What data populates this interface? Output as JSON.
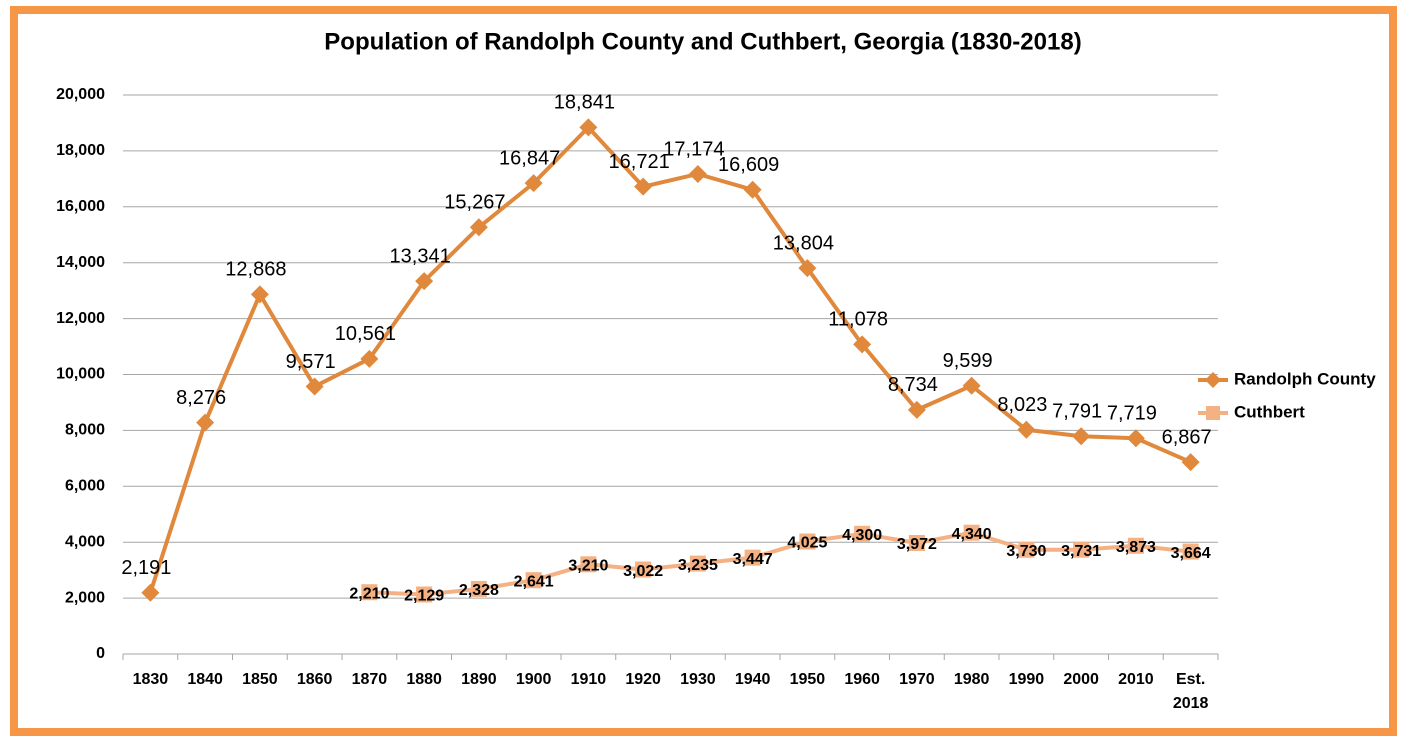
{
  "chart_data": {
    "type": "line",
    "title": "Population of Randolph County and Cuthbert, Georgia (1830-2018)",
    "categories": [
      "1830",
      "1840",
      "1850",
      "1860",
      "1870",
      "1880",
      "1890",
      "1900",
      "1910",
      "1920",
      "1930",
      "1940",
      "1950",
      "1960",
      "1970",
      "1980",
      "1990",
      "2000",
      "2010",
      "Est. 2018"
    ],
    "series": [
      {
        "name": "Randolph County",
        "color": "#e0883b",
        "marker": "diamond",
        "values": [
          2191,
          8276,
          12868,
          9571,
          10561,
          13341,
          15267,
          16847,
          18841,
          16721,
          17174,
          16609,
          13804,
          11078,
          8734,
          9599,
          8023,
          7791,
          7719,
          6867
        ],
        "value_labels": [
          "2,191",
          "8,276",
          "12,868",
          "9,571",
          "10,561",
          "13,341",
          "15,267",
          "16,847",
          "18,841",
          "16,721",
          "17,174",
          "16,609",
          "13,804",
          "11,078",
          "8,734",
          "9,599",
          "8,023",
          "7,791",
          "7,719",
          "6,867"
        ]
      },
      {
        "name": "Cuthbert",
        "color": "#f4b183",
        "marker": "square",
        "values": [
          null,
          null,
          null,
          null,
          2210,
          2129,
          2328,
          2641,
          3210,
          3022,
          3235,
          3447,
          4025,
          4300,
          3972,
          4340,
          3730,
          3731,
          3873,
          3664
        ],
        "value_labels": [
          null,
          null,
          null,
          null,
          "2,210",
          "2,129",
          "2,328",
          "2,641",
          "3,210",
          "3,022",
          "3,235",
          "3,447",
          "4,025",
          "4,300",
          "3,972",
          "4,340",
          "3,730",
          "3,731",
          "3,873",
          "3,664"
        ]
      }
    ],
    "ylim": [
      0,
      20000
    ],
    "yticks": [
      0,
      {
        "value": 2000,
        "label": "2,000"
      },
      {
        "value": 4000,
        "label": "4,000"
      },
      {
        "value": 6000,
        "label": "6,000"
      },
      {
        "value": 8000,
        "label": "8,000"
      },
      {
        "value": 10000,
        "label": "10,000"
      },
      {
        "value": 12000,
        "label": "12,000"
      },
      {
        "value": 14000,
        "label": "14,000"
      },
      {
        "value": 16000,
        "label": "16,000"
      },
      {
        "value": 18000,
        "label": "18,000"
      },
      {
        "value": 20000,
        "label": "20,000"
      }
    ],
    "grid": true,
    "legend": "right"
  }
}
